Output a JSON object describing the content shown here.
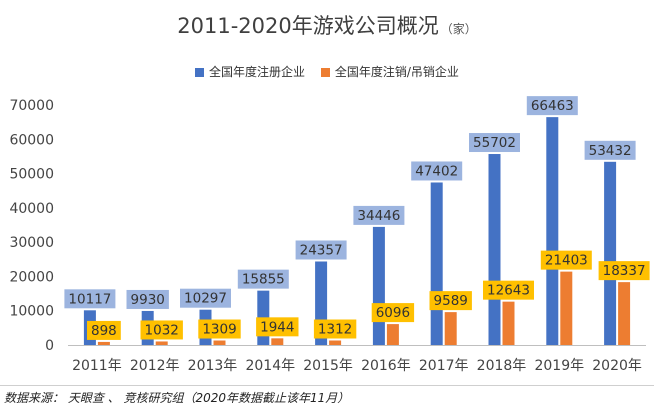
{
  "title": "2011-2020年游戏公司概况",
  "unit_label": "（家）",
  "source": "数据来源： 天眼查 、 竞核研究组（2020年数据截止该年11月）",
  "colors": {
    "registered": "#4472c4",
    "cancelled": "#ed7d31",
    "registered_label_bg": "#9cb4df",
    "cancelled_label_bg": "#ffc000"
  },
  "chart_data": {
    "type": "bar",
    "categories": [
      "2011年",
      "2012年",
      "2013年",
      "2014年",
      "2015年",
      "2016年",
      "2017年",
      "2018年",
      "2019年",
      "2020年"
    ],
    "series": [
      {
        "name": "全国年度注册企业",
        "values": [
          10117,
          9930,
          10297,
          15855,
          24357,
          34446,
          47402,
          55702,
          66463,
          53432
        ]
      },
      {
        "name": "全国年度注销/吊销企业",
        "values": [
          898,
          1032,
          1309,
          1944,
          1312,
          6096,
          9589,
          12643,
          21403,
          18337
        ]
      }
    ],
    "yticks": [
      "0",
      "10000",
      "20000",
      "30000",
      "40000",
      "50000",
      "60000",
      "70000"
    ],
    "ylim": [
      0,
      70000
    ],
    "legend_position": "top",
    "grid": false
  }
}
